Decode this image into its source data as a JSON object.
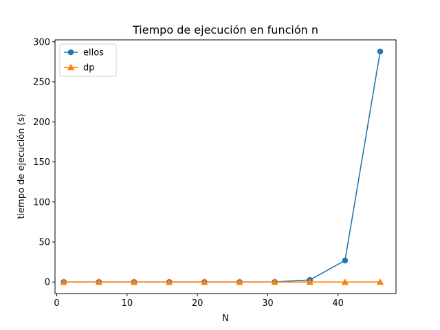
{
  "chart_data": {
    "type": "line",
    "title": "Tiempo de ejecución en función n",
    "xlabel": "N",
    "ylabel": "tiempo de ejecución (s)",
    "xlim": [
      -0.25,
      48.25
    ],
    "ylim": [
      -14.4,
      302.4
    ],
    "xticks": [
      0,
      10,
      20,
      30,
      40
    ],
    "yticks": [
      0,
      50,
      100,
      150,
      200,
      250,
      300
    ],
    "grid": false,
    "legend_position": "top-left",
    "x": [
      1,
      6,
      11,
      16,
      21,
      26,
      31,
      36,
      41,
      46
    ],
    "series": [
      {
        "name": "ellos",
        "marker": "circle",
        "color": "#1f77b4",
        "values": [
          0.0,
          0.0,
          0.0,
          0.0,
          0.0,
          0.0,
          0.1,
          2.6,
          26.9,
          287.9
        ]
      },
      {
        "name": "dp",
        "marker": "triangle",
        "color": "#ff7f0e",
        "values": [
          0.0,
          0.0,
          0.0,
          0.0,
          0.0,
          0.0,
          0.0,
          0.0,
          0.0,
          0.0
        ]
      }
    ]
  }
}
